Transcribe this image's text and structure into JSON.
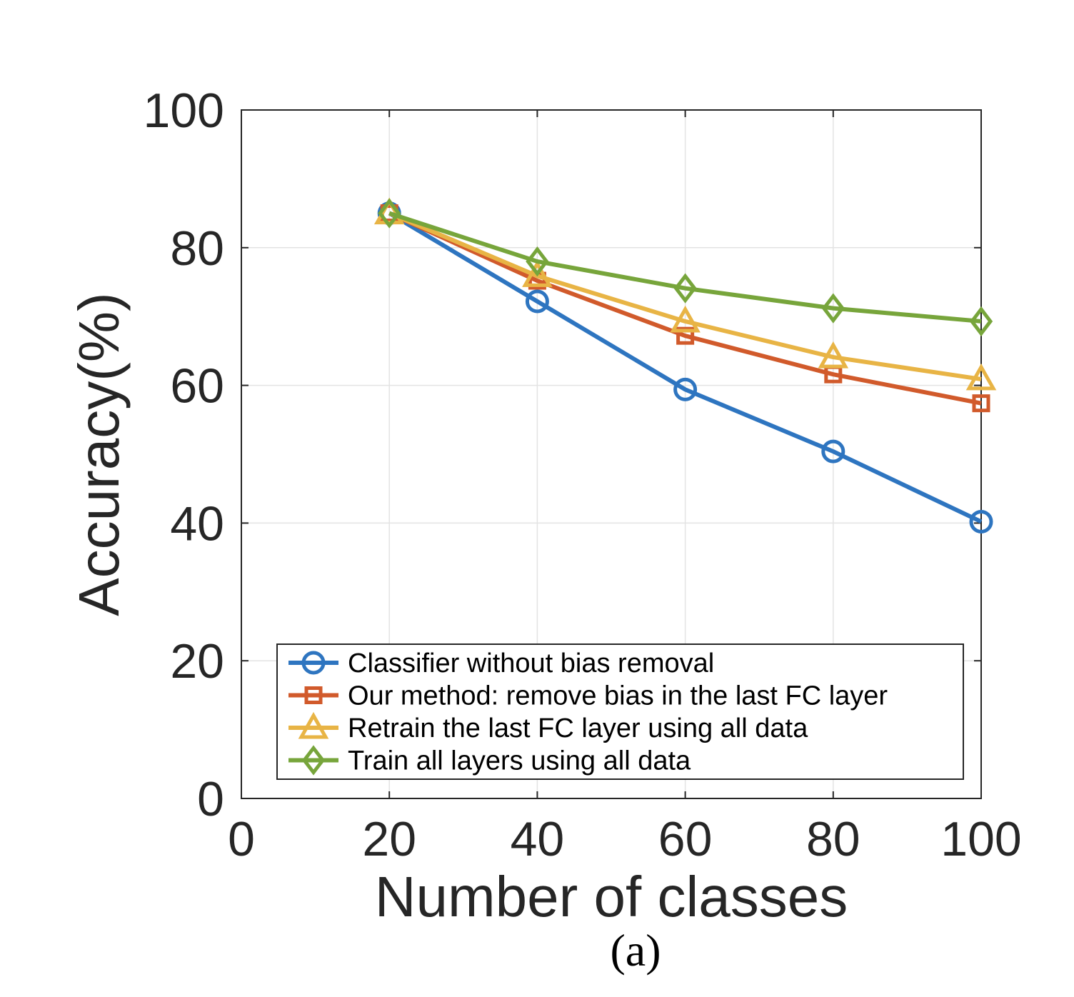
{
  "chart_data": {
    "type": "line",
    "xlabel": "Number of classes",
    "ylabel": "Accuracy(%)",
    "caption": "(a)",
    "xlim": [
      0,
      100
    ],
    "ylim": [
      0,
      100
    ],
    "x_ticks": [
      "0",
      "20",
      "40",
      "60",
      "80",
      "100"
    ],
    "y_ticks": [
      "0",
      "20",
      "40",
      "60",
      "80",
      "100"
    ],
    "grid": true,
    "legend_position": "bottom-center",
    "x": [
      20,
      40,
      60,
      80,
      100
    ],
    "series": [
      {
        "name": "Classifier without bias removal",
        "values": [
          85,
          72.2,
          59.4,
          50.4,
          40.2
        ],
        "color": "#2e75c0",
        "marker": "circle"
      },
      {
        "name": "Our method: remove bias in the last FC layer",
        "values": [
          85,
          75.2,
          67.2,
          61.6,
          57.4
        ],
        "color": "#d15a2b",
        "marker": "square"
      },
      {
        "name": "Retrain the last FC layer using all data",
        "values": [
          85,
          75.9,
          69.3,
          64.1,
          60.9
        ],
        "color": "#e8b445",
        "marker": "triangle"
      },
      {
        "name": "Train all layers using all data",
        "values": [
          85,
          78,
          74.1,
          71.2,
          69.3
        ],
        "color": "#77a53b",
        "marker": "diamond"
      }
    ]
  }
}
